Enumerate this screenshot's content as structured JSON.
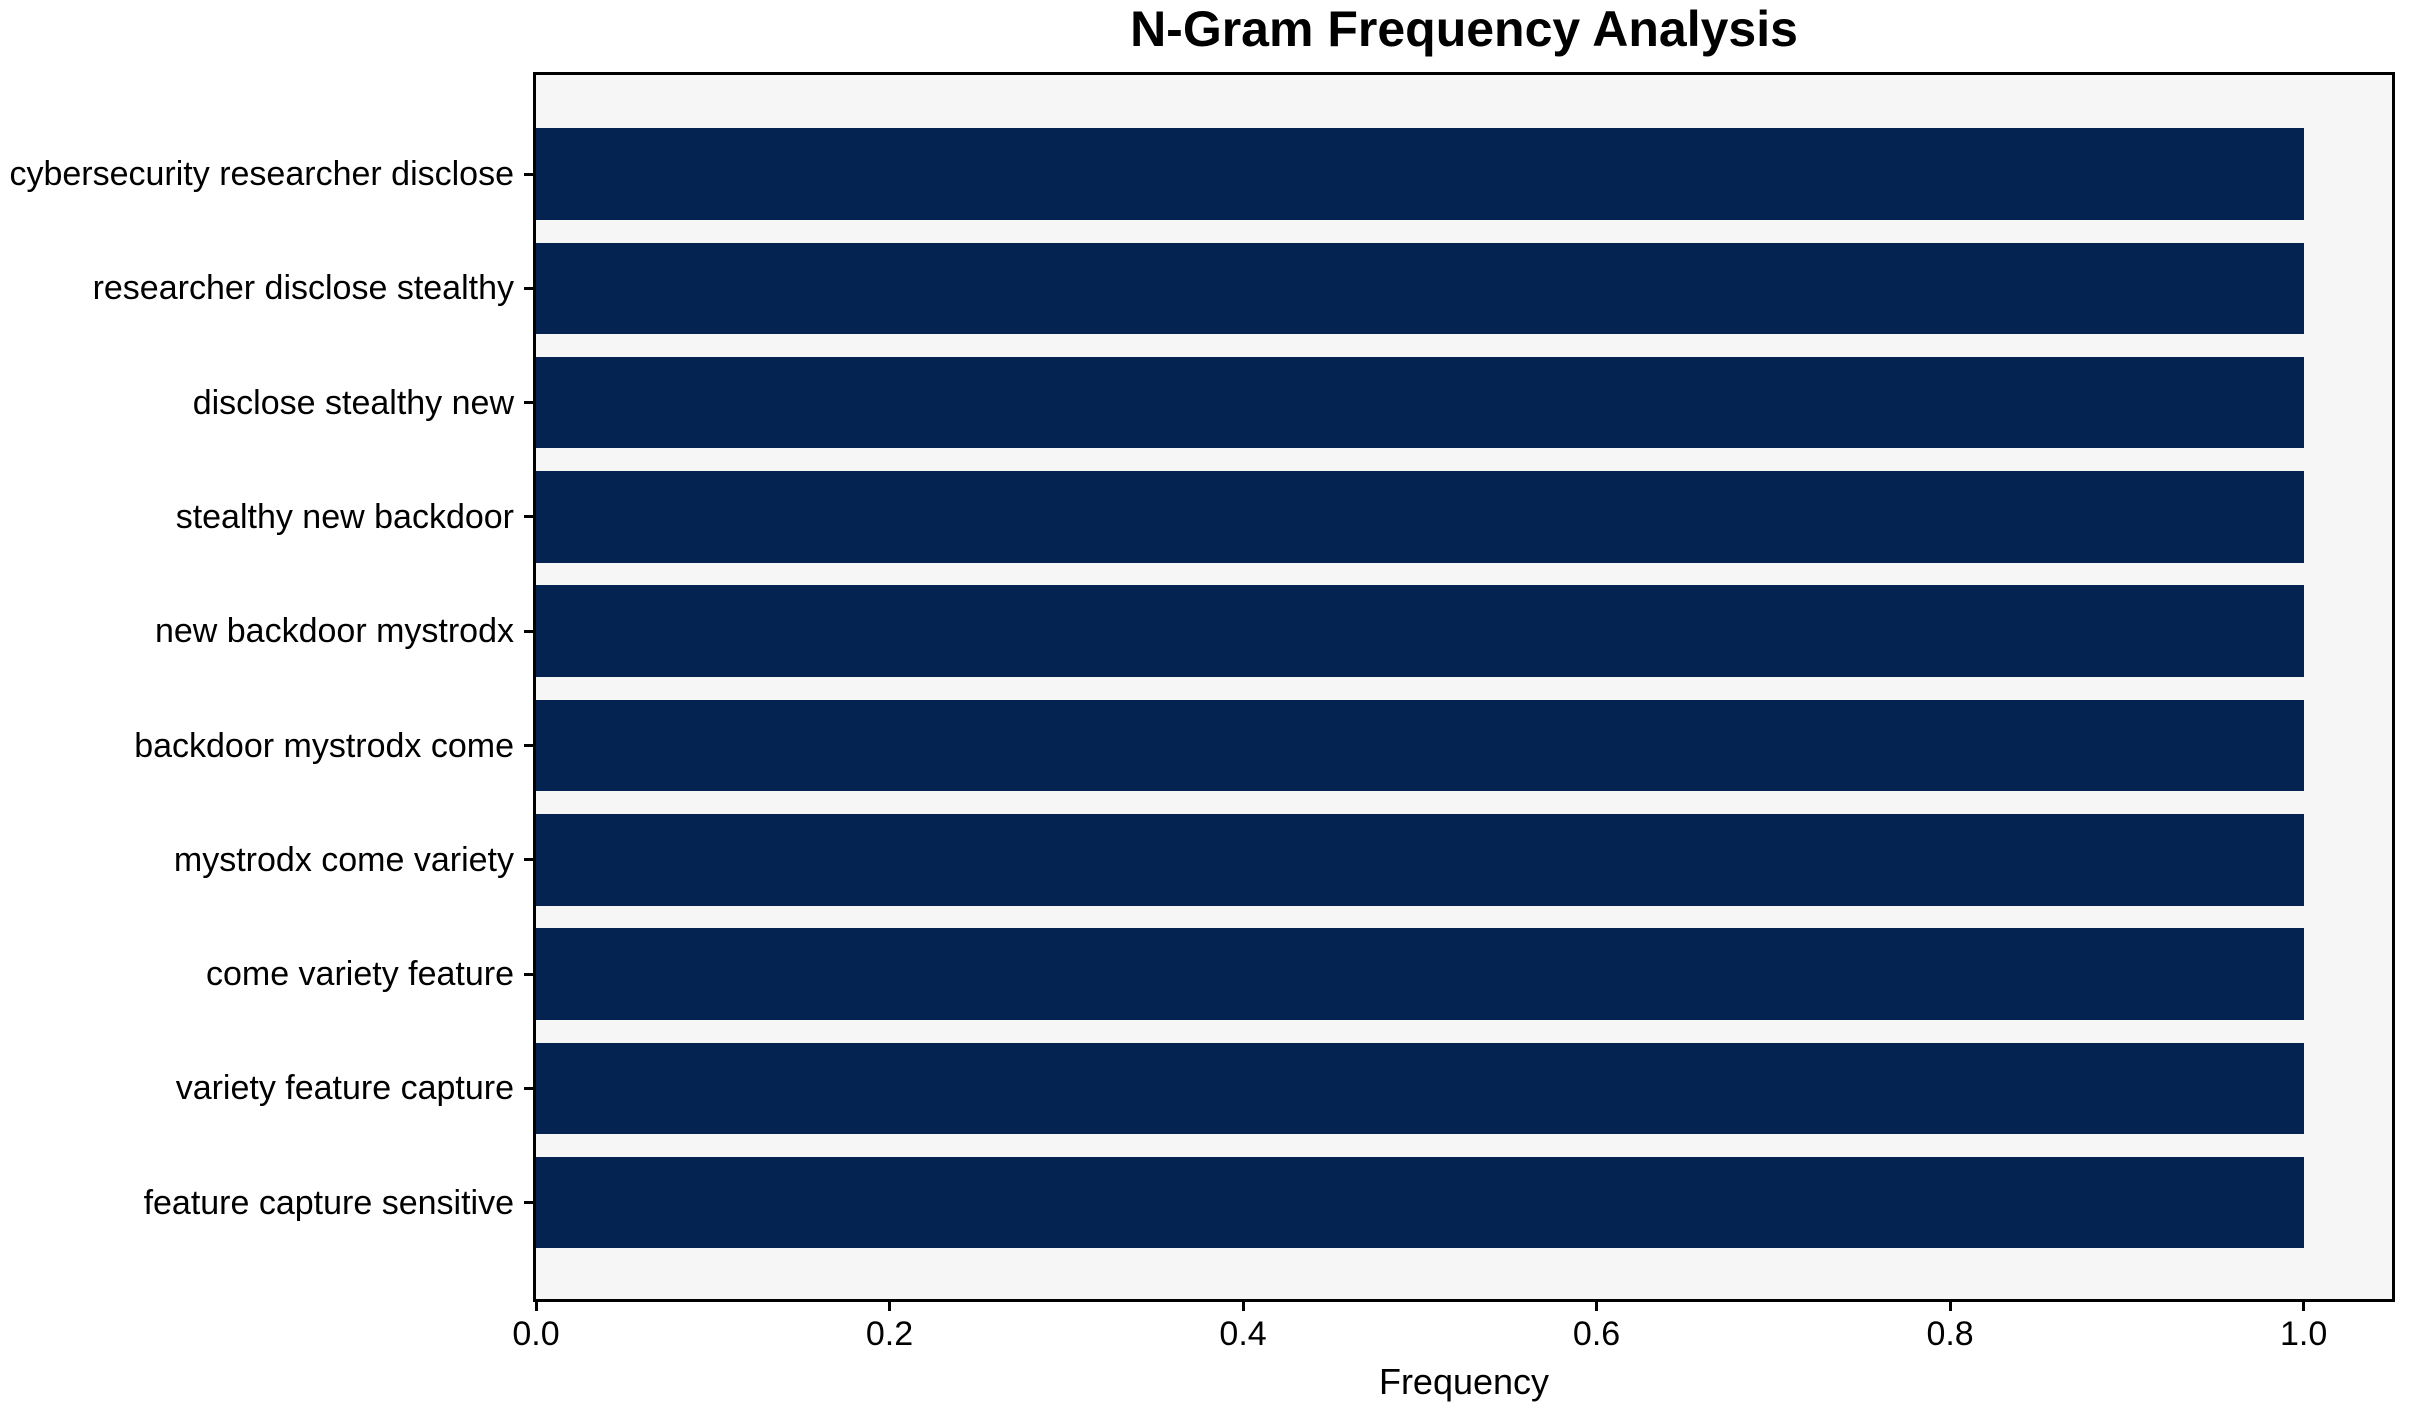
{
  "chart_data": {
    "type": "bar",
    "orientation": "horizontal",
    "title": "N-Gram Frequency Analysis",
    "xlabel": "Frequency",
    "ylabel": "",
    "categories": [
      "cybersecurity researcher disclose",
      "researcher disclose stealthy",
      "disclose stealthy new",
      "stealthy new backdoor",
      "new backdoor mystrodx",
      "backdoor mystrodx come",
      "mystrodx come variety",
      "come variety feature",
      "variety feature capture",
      "feature capture sensitive"
    ],
    "values": [
      1.0,
      1.0,
      1.0,
      1.0,
      1.0,
      1.0,
      1.0,
      1.0,
      1.0,
      1.0
    ],
    "xlim": [
      0.0,
      1.05
    ],
    "xtick_values": [
      0.0,
      0.2,
      0.4,
      0.6,
      0.8,
      1.0
    ],
    "xtick_labels": [
      "0.0",
      "0.2",
      "0.4",
      "0.6",
      "0.8",
      "1.0"
    ],
    "grid": false,
    "legend": "none",
    "bar_color": "#042350",
    "plot_bg_color": "#f6f6f7",
    "spine_color": "#000000",
    "figure_bg_color": "#ffffff"
  }
}
